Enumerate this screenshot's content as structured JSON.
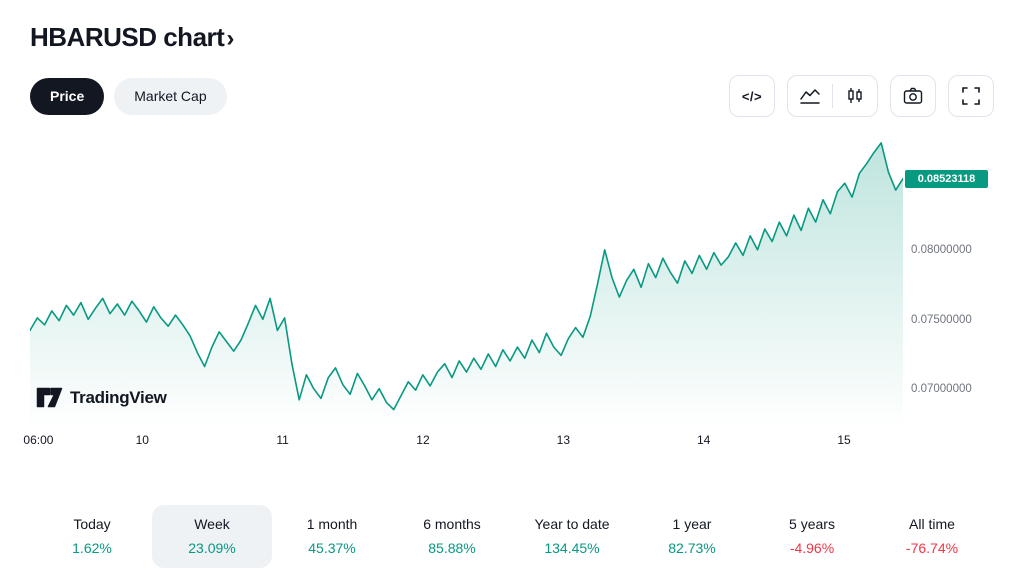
{
  "header": {
    "title": "HBARUSD chart",
    "chevron": "›"
  },
  "toggles": {
    "price": "Price",
    "market_cap": "Market Cap"
  },
  "toolbar": {
    "source_code_icon": "</>"
  },
  "branding": {
    "logo_text": "TradingView"
  },
  "colors": {
    "up": "#089981",
    "down": "#f23645",
    "accent": "#089981"
  },
  "chart_data": {
    "type": "area",
    "title": "HBARUSD price",
    "line_color": "#089981",
    "grid": false,
    "legend": "none",
    "x_range": [
      9.2,
      15.42
    ],
    "x_evenly_spaced": true,
    "values": [
      0.0743,
      0.0752,
      0.0747,
      0.0757,
      0.075,
      0.0761,
      0.0754,
      0.0763,
      0.0751,
      0.0759,
      0.0766,
      0.0755,
      0.0762,
      0.0754,
      0.0764,
      0.0757,
      0.0749,
      0.076,
      0.0752,
      0.0746,
      0.0754,
      0.0747,
      0.0739,
      0.0727,
      0.0717,
      0.0731,
      0.0742,
      0.0735,
      0.0728,
      0.0736,
      0.0748,
      0.0761,
      0.0751,
      0.0766,
      0.0743,
      0.0752,
      0.0719,
      0.0693,
      0.0711,
      0.0701,
      0.0694,
      0.0709,
      0.0716,
      0.0704,
      0.0697,
      0.0712,
      0.0703,
      0.0693,
      0.0701,
      0.0691,
      0.0686,
      0.0696,
      0.0706,
      0.07,
      0.0711,
      0.0703,
      0.0713,
      0.0719,
      0.0709,
      0.0721,
      0.0713,
      0.0723,
      0.0715,
      0.0726,
      0.0717,
      0.0729,
      0.0721,
      0.0731,
      0.0723,
      0.0736,
      0.0727,
      0.0741,
      0.0731,
      0.0725,
      0.0737,
      0.0745,
      0.0738,
      0.0753,
      0.0776,
      0.0801,
      0.0781,
      0.0767,
      0.0779,
      0.0787,
      0.0774,
      0.0791,
      0.0781,
      0.0795,
      0.0785,
      0.0777,
      0.0793,
      0.0784,
      0.0797,
      0.0787,
      0.0799,
      0.079,
      0.0796,
      0.0806,
      0.0797,
      0.0811,
      0.0801,
      0.0816,
      0.0807,
      0.0821,
      0.0811,
      0.0826,
      0.0815,
      0.0831,
      0.0821,
      0.0837,
      0.0827,
      0.0843,
      0.0849,
      0.0839,
      0.0856,
      0.0863,
      0.0871,
      0.0878,
      0.0857,
      0.0844,
      0.08523118
    ],
    "ylim": [
      0.0672,
      0.0888
    ],
    "current_price": 0.08523118,
    "current_price_label": "0.08523118",
    "y_ticks": [
      {
        "value": 0.08,
        "label": "0.08000000"
      },
      {
        "value": 0.075,
        "label": "0.07500000"
      },
      {
        "value": 0.07,
        "label": "0.07000000"
      }
    ],
    "x_ticks": [
      {
        "pos": 9.26,
        "label": "06:00"
      },
      {
        "pos": 10,
        "label": "10"
      },
      {
        "pos": 11,
        "label": "11"
      },
      {
        "pos": 12,
        "label": "12"
      },
      {
        "pos": 13,
        "label": "13"
      },
      {
        "pos": 14,
        "label": "14"
      },
      {
        "pos": 15,
        "label": "15"
      }
    ]
  },
  "stats": {
    "items": [
      {
        "label": "Today",
        "value": "1.62%",
        "direction": "up",
        "selected": false
      },
      {
        "label": "Week",
        "value": "23.09%",
        "direction": "up",
        "selected": true
      },
      {
        "label": "1 month",
        "value": "45.37%",
        "direction": "up",
        "selected": false
      },
      {
        "label": "6 months",
        "value": "85.88%",
        "direction": "up",
        "selected": false
      },
      {
        "label": "Year to date",
        "value": "134.45%",
        "direction": "up",
        "selected": false
      },
      {
        "label": "1 year",
        "value": "82.73%",
        "direction": "up",
        "selected": false
      },
      {
        "label": "5 years",
        "value": "-4.96%",
        "direction": "down",
        "selected": false
      },
      {
        "label": "All time",
        "value": "-76.74%",
        "direction": "down",
        "selected": false
      }
    ]
  }
}
